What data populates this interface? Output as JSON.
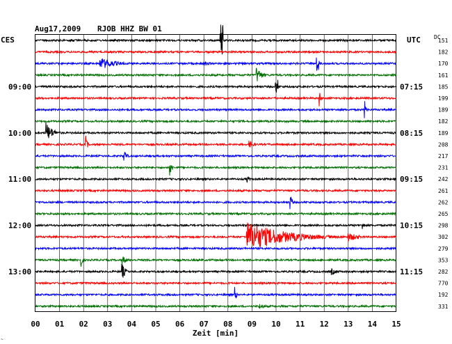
{
  "header": {
    "date": "Aug17,2009",
    "station": "RJOB HHZ BW 01",
    "left_zone": "CES",
    "right_zone": "UTC",
    "dc_label": "DC"
  },
  "footer": {
    "corner_mark": "~"
  },
  "colors": {
    "trace_cycle": [
      "#000000",
      "#ff0000",
      "#0000ff",
      "#007000"
    ],
    "grid": "#000000"
  },
  "chart_data": {
    "type": "line",
    "chart_kind": "helicorder seismogram",
    "xlabel": "Zeit [min]",
    "xlim": [
      0,
      15
    ],
    "x_ticks": [
      "00",
      "01",
      "02",
      "03",
      "04",
      "05",
      "06",
      "07",
      "08",
      "09",
      "10",
      "11",
      "12",
      "13",
      "14",
      "15"
    ],
    "grid": true,
    "rows_per_hour": 4,
    "row_duration_min": 15,
    "left_time_labels": [
      {
        "row": 4,
        "label": "09:00"
      },
      {
        "row": 8,
        "label": "10:00"
      },
      {
        "row": 12,
        "label": "11:00"
      },
      {
        "row": 16,
        "label": "12:00"
      },
      {
        "row": 20,
        "label": "13:00"
      }
    ],
    "right_time_labels": [
      {
        "row": 4,
        "label": "07:15"
      },
      {
        "row": 8,
        "label": "08:15"
      },
      {
        "row": 12,
        "label": "09:15"
      },
      {
        "row": 16,
        "label": "10:15"
      },
      {
        "row": 20,
        "label": "11:15"
      }
    ],
    "dc_offsets": [
      151,
      182,
      170,
      161,
      185,
      199,
      189,
      182,
      189,
      208,
      217,
      231,
      242,
      261,
      262,
      265,
      298,
      302,
      279,
      353,
      282,
      770,
      192,
      331
    ],
    "events": [
      {
        "row": 0,
        "minute": 7.7,
        "amplitude": 24,
        "duration": 0.1
      },
      {
        "row": 2,
        "minute": 2.7,
        "amplitude": 9,
        "duration": 1.8
      },
      {
        "row": 2,
        "minute": 7.0,
        "amplitude": 4,
        "duration": 0.8
      },
      {
        "row": 2,
        "minute": 11.7,
        "amplitude": 12,
        "duration": 0.1
      },
      {
        "row": 3,
        "minute": 9.2,
        "amplitude": 12,
        "duration": 0.6
      },
      {
        "row": 4,
        "minute": 10.0,
        "amplitude": 10,
        "duration": 0.1
      },
      {
        "row": 5,
        "minute": 11.8,
        "amplitude": 12,
        "duration": 0.2
      },
      {
        "row": 6,
        "minute": 13.7,
        "amplitude": 10,
        "duration": 0.2
      },
      {
        "row": 8,
        "minute": 0.45,
        "amplitude": 15,
        "duration": 0.8
      },
      {
        "row": 9,
        "minute": 2.1,
        "amplitude": 12,
        "duration": 0.2
      },
      {
        "row": 9,
        "minute": 8.9,
        "amplitude": 5,
        "duration": 0.8
      },
      {
        "row": 10,
        "minute": 3.7,
        "amplitude": 9,
        "duration": 0.3
      },
      {
        "row": 11,
        "minute": 5.6,
        "amplitude": 14,
        "duration": 0.2
      },
      {
        "row": 12,
        "minute": 8.8,
        "amplitude": 5,
        "duration": 0.3
      },
      {
        "row": 14,
        "minute": 10.6,
        "amplitude": 12,
        "duration": 0.2
      },
      {
        "row": 16,
        "minute": 13.6,
        "amplitude": 6,
        "duration": 0.2
      },
      {
        "row": 17,
        "minute": 8.8,
        "amplitude": 22,
        "duration": 4.5
      },
      {
        "row": 17,
        "minute": 13.0,
        "amplitude": 7,
        "duration": 1.2
      },
      {
        "row": 19,
        "minute": 1.9,
        "amplitude": 10,
        "duration": 0.2
      },
      {
        "row": 19,
        "minute": 3.6,
        "amplitude": 7,
        "duration": 0.6
      },
      {
        "row": 20,
        "minute": 3.6,
        "amplitude": 12,
        "duration": 0.4
      },
      {
        "row": 20,
        "minute": 12.3,
        "amplitude": 5,
        "duration": 0.8
      },
      {
        "row": 22,
        "minute": 8.3,
        "amplitude": 10,
        "duration": 0.2
      },
      {
        "row": 23,
        "minute": 9.3,
        "amplitude": 4,
        "duration": 0.8
      }
    ]
  }
}
